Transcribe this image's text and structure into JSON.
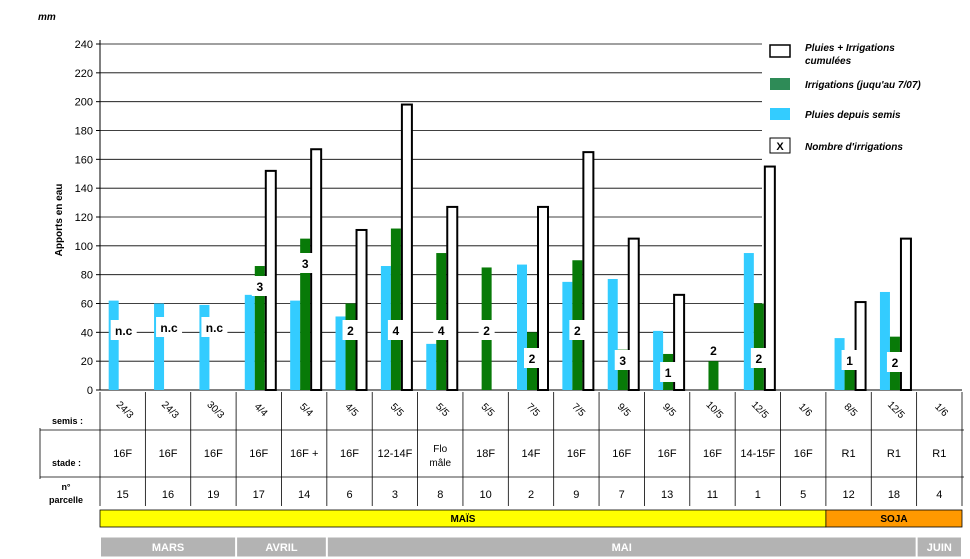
{
  "chart_data": {
    "type": "bar",
    "unit": "mm",
    "ylabel": "Apports en eau",
    "ylim": [
      0,
      240
    ],
    "yticks": [
      0,
      20,
      40,
      60,
      80,
      100,
      120,
      140,
      160,
      180,
      200,
      220,
      240
    ],
    "grid": true,
    "legend_position": "top-right",
    "legend": {
      "cumul": "Pluies + Irrigations cumulées",
      "irrig": "Irrigations (juqu'au 7/07)",
      "pluie": "Pluies depuis semis",
      "count_symbol": "X",
      "count": "Nombre d'irrigations"
    },
    "row_labels": {
      "semis": "semis :",
      "stade": "stade :",
      "parcelle": "n° parcelle"
    },
    "series_colors": {
      "pluie": "#33ccff",
      "irrig": "#087a08",
      "cumul": "#ffffff",
      "crop_mais": "#ffff00",
      "crop_soja": "#ff9900",
      "months": "#b3b3b3"
    },
    "categories": [
      {
        "semis": "24/3",
        "stade": "16F",
        "parcelle": "15",
        "pluie": 62,
        "irrig": null,
        "cumul": null,
        "count": "n.c"
      },
      {
        "semis": "24/3",
        "stade": "16F",
        "parcelle": "16",
        "pluie": 60,
        "irrig": null,
        "cumul": null,
        "count": "n.c"
      },
      {
        "semis": "30/3",
        "stade": "16F",
        "parcelle": "19",
        "pluie": 59,
        "irrig": null,
        "cumul": null,
        "count": "n.c"
      },
      {
        "semis": "4/4",
        "stade": "16F",
        "parcelle": "17",
        "pluie": 66,
        "irrig": 86,
        "cumul": 152,
        "count": "3"
      },
      {
        "semis": "5/4",
        "stade": "16F +",
        "parcelle": "14",
        "pluie": 62,
        "irrig": 105,
        "cumul": 167,
        "count": "3"
      },
      {
        "semis": "4/5",
        "stade": "16F",
        "parcelle": "6",
        "pluie": 51,
        "irrig": 60,
        "cumul": 111,
        "count": "2"
      },
      {
        "semis": "5/5",
        "stade": "12-14F",
        "parcelle": "3",
        "pluie": 86,
        "irrig": 112,
        "cumul": 198,
        "count": "4"
      },
      {
        "semis": "5/5",
        "stade": "Flo mâle",
        "parcelle": "8",
        "pluie": 32,
        "irrig": 95,
        "cumul": 127,
        "count": "4"
      },
      {
        "semis": "5/5",
        "stade": "18F",
        "parcelle": "10",
        "pluie": null,
        "irrig": 85,
        "cumul": null,
        "count": "2"
      },
      {
        "semis": "7/5",
        "stade": "14F",
        "parcelle": "2",
        "pluie": 87,
        "irrig": 40,
        "cumul": 127,
        "count": "2"
      },
      {
        "semis": "7/5",
        "stade": "16F",
        "parcelle": "9",
        "pluie": 75,
        "irrig": 90,
        "cumul": 165,
        "count": "2"
      },
      {
        "semis": "9/5",
        "stade": "16F",
        "parcelle": "7",
        "pluie": 77,
        "irrig": 28,
        "cumul": 105,
        "count": "3"
      },
      {
        "semis": "9/5",
        "stade": "16F",
        "parcelle": "13",
        "pluie": 41,
        "irrig": 25,
        "cumul": 66,
        "count": "1"
      },
      {
        "semis": "10/5",
        "stade": "16F",
        "parcelle": "11",
        "pluie": null,
        "irrig": 20,
        "cumul": null,
        "count": "2"
      },
      {
        "semis": "12/5",
        "stade": "14-15F",
        "parcelle": "1",
        "pluie": 95,
        "irrig": 60,
        "cumul": 155,
        "count": "2"
      },
      {
        "semis": "1/6",
        "stade": "16F",
        "parcelle": "5",
        "pluie": null,
        "irrig": null,
        "cumul": null,
        "count": null
      },
      {
        "semis": "8/5",
        "stade": "R1",
        "parcelle": "12",
        "pluie": 36,
        "irrig": 25,
        "cumul": 61,
        "count": "1"
      },
      {
        "semis": "12/5",
        "stade": "R1",
        "parcelle": "18",
        "pluie": 68,
        "irrig": 37,
        "cumul": 105,
        "count": "2"
      },
      {
        "semis": "1/6",
        "stade": "R1",
        "parcelle": "4",
        "pluie": null,
        "irrig": null,
        "cumul": null,
        "count": null
      }
    ],
    "crops": [
      {
        "label": "MAÏS",
        "first": 0,
        "last": 15
      },
      {
        "label": "SOJA",
        "first": 16,
        "last": 18
      }
    ],
    "months": [
      {
        "label": "MARS",
        "first": 0,
        "last": 2
      },
      {
        "label": "AVRIL",
        "first": 3,
        "last": 4
      },
      {
        "label": "MAI",
        "first": 5,
        "last": 17
      },
      {
        "label": "JUIN",
        "first": 18,
        "last": 18
      }
    ]
  }
}
